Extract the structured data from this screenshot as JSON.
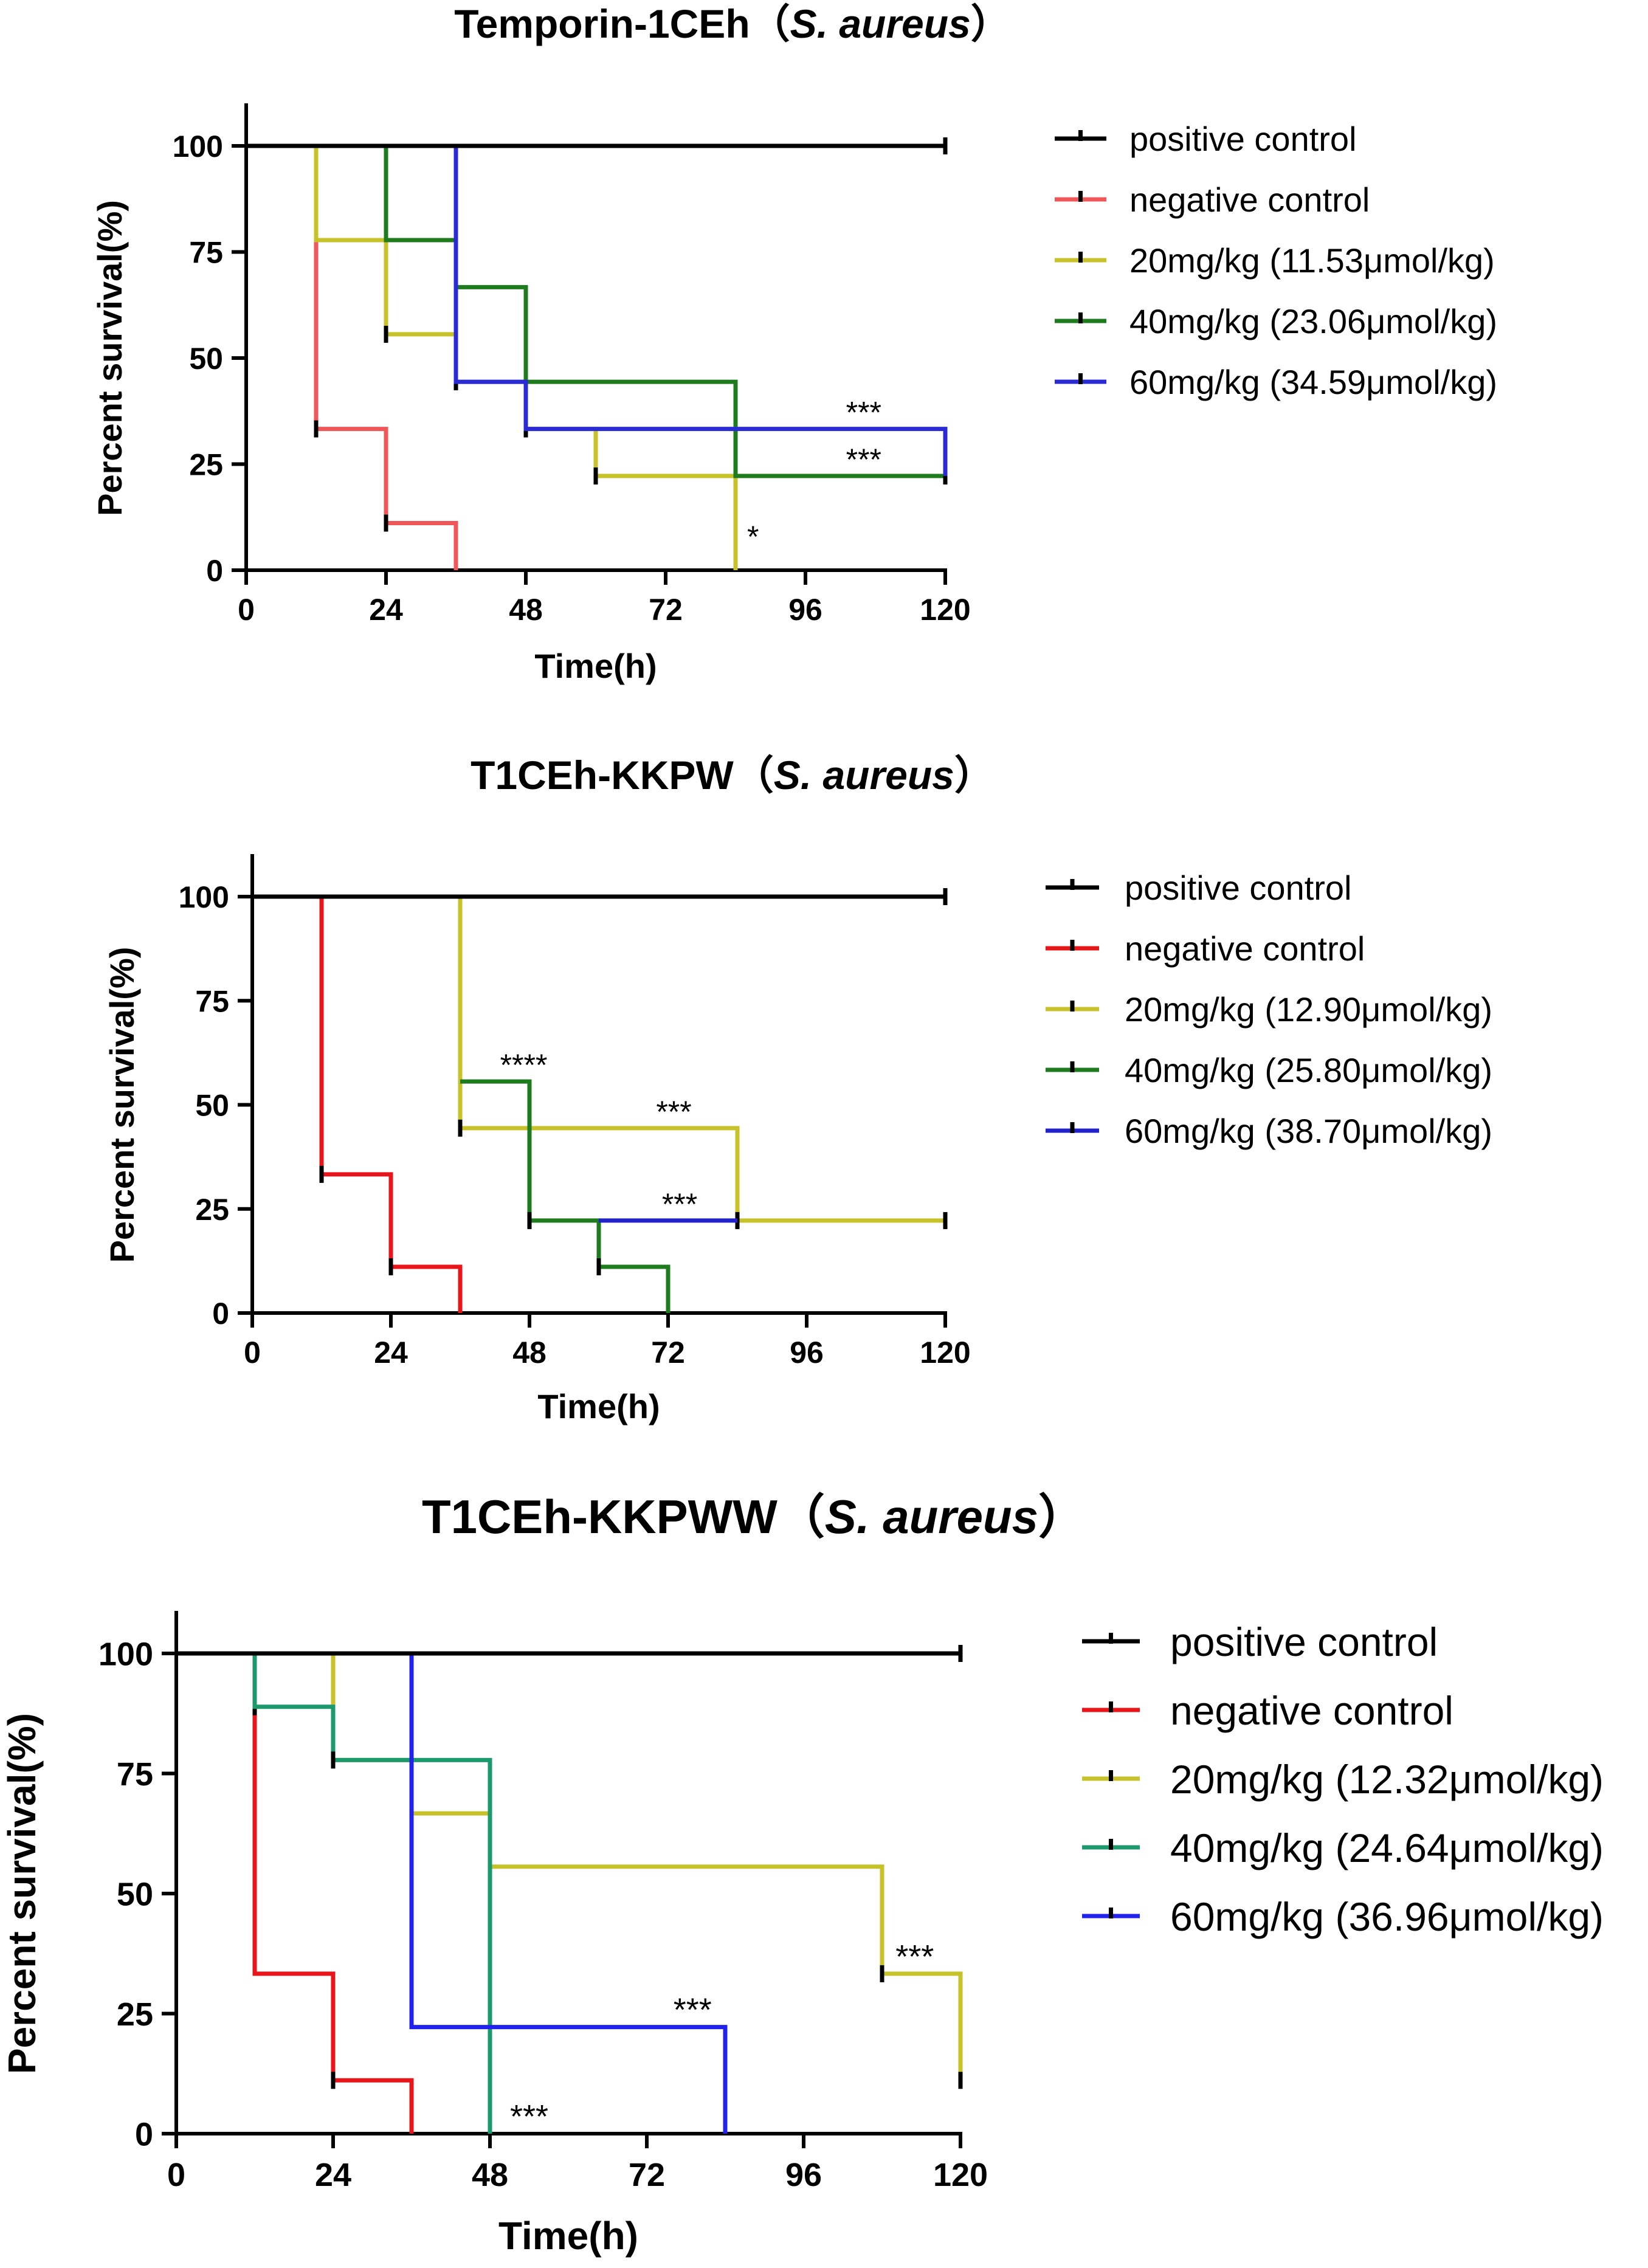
{
  "chart_data": [
    {
      "type": "line",
      "title": "Temporin-1CEh",
      "title_organism": "S. aureus",
      "xlabel": "Time(h)",
      "ylabel": "Percent survival(%)",
      "xlim": [
        0,
        120
      ],
      "ylim": [
        0,
        100
      ],
      "x_ticks": [
        "0",
        "24",
        "48",
        "72",
        "96",
        "120"
      ],
      "y_ticks": [
        "0",
        "25",
        "50",
        "75",
        "100"
      ],
      "grid": false,
      "legend_position": "right",
      "series": [
        {
          "name": "positive control",
          "color": "#000000",
          "points": [
            [
              0,
              100
            ],
            [
              120,
              100
            ]
          ],
          "censor": [
            [
              120,
              100
            ]
          ]
        },
        {
          "name": "negative control",
          "color": "#f0575a",
          "points": [
            [
              12,
              100
            ],
            [
              12,
              33.3
            ],
            [
              24,
              33.3
            ],
            [
              24,
              11.1
            ],
            [
              36,
              11.1
            ],
            [
              36,
              0
            ]
          ],
          "censor": [
            [
              12,
              33.3
            ],
            [
              24,
              11.1
            ]
          ]
        },
        {
          "name": "20mg/kg (11.53μmol/kg)",
          "color": "#c7c22a",
          "points": [
            [
              12,
              100
            ],
            [
              12,
              77.8
            ],
            [
              24,
              77.8
            ],
            [
              24,
              55.6
            ],
            [
              36,
              55.6
            ],
            [
              36,
              44.4
            ],
            [
              48,
              44.4
            ],
            [
              48,
              33.3
            ],
            [
              60,
              33.3
            ],
            [
              60,
              22.2
            ],
            [
              84,
              22.2
            ],
            [
              84,
              0
            ]
          ],
          "censor": [
            [
              24,
              55.6
            ],
            [
              36,
              44.4
            ],
            [
              48,
              33.3
            ],
            [
              60,
              22.2
            ]
          ]
        },
        {
          "name": "40mg/kg (23.06μmol/kg)",
          "color": "#1e7b1e",
          "points": [
            [
              24,
              100
            ],
            [
              24,
              77.8
            ],
            [
              36,
              77.8
            ],
            [
              36,
              66.7
            ],
            [
              48,
              66.7
            ],
            [
              48,
              44.4
            ],
            [
              84,
              44.4
            ],
            [
              84,
              22.2
            ],
            [
              120,
              22.2
            ]
          ],
          "censor": [
            [
              36,
              66.7
            ],
            [
              120,
              22.2
            ]
          ]
        },
        {
          "name": "60mg/kg (34.59μmol/kg)",
          "color": "#2b2bd6",
          "points": [
            [
              36,
              100
            ],
            [
              36,
              44.4
            ],
            [
              48,
              44.4
            ],
            [
              48,
              33.3
            ],
            [
              120,
              33.3
            ],
            [
              120,
              22.2
            ]
          ],
          "censor": []
        }
      ],
      "annotations": [
        {
          "text": "***",
          "x": 106,
          "y": 33.3
        },
        {
          "text": "***",
          "x": 106,
          "y": 22.2
        },
        {
          "text": "*",
          "x": 87,
          "y": 4
        }
      ]
    },
    {
      "type": "line",
      "title": "T1CEh-KKPW",
      "title_organism": "S. aureus",
      "xlabel": "Time(h)",
      "ylabel": "Percent survival(%)",
      "xlim": [
        0,
        120
      ],
      "ylim": [
        0,
        100
      ],
      "x_ticks": [
        "0",
        "24",
        "48",
        "72",
        "96",
        "120"
      ],
      "y_ticks": [
        "0",
        "25",
        "50",
        "75",
        "100"
      ],
      "grid": false,
      "legend_position": "right",
      "series": [
        {
          "name": "positive control",
          "color": "#000000",
          "points": [
            [
              0,
              100
            ],
            [
              120,
              100
            ]
          ],
          "censor": [
            [
              120,
              100
            ]
          ]
        },
        {
          "name": "negative control",
          "color": "#e8151a",
          "points": [
            [
              12,
              100
            ],
            [
              12,
              33.3
            ],
            [
              24,
              33.3
            ],
            [
              24,
              11.1
            ],
            [
              36,
              11.1
            ],
            [
              36,
              0
            ]
          ],
          "censor": [
            [
              12,
              33.3
            ],
            [
              24,
              11.1
            ]
          ]
        },
        {
          "name": "20mg/kg (12.90μmol/kg)",
          "color": "#c7c22a",
          "points": [
            [
              36,
              100
            ],
            [
              36,
              44.4
            ],
            [
              84,
              44.4
            ],
            [
              84,
              22.2
            ],
            [
              120,
              22.2
            ]
          ],
          "censor": [
            [
              36,
              44.4
            ],
            [
              84,
              22.2
            ],
            [
              120,
              22.2
            ]
          ]
        },
        {
          "name": "40mg/kg (25.80μmol/kg)",
          "color": "#1e7b1e",
          "points": [
            [
              36,
              55.6
            ],
            [
              48,
              55.6
            ],
            [
              48,
              22.2
            ],
            [
              60,
              22.2
            ],
            [
              60,
              11.1
            ],
            [
              72,
              11.1
            ],
            [
              72,
              0
            ]
          ],
          "censor": [
            [
              48,
              22.2
            ],
            [
              60,
              11.1
            ]
          ]
        },
        {
          "name": "60mg/kg (38.70μmol/kg)",
          "color": "#2222cc",
          "points": [
            [
              60,
              22.2
            ],
            [
              84,
              22.2
            ]
          ],
          "censor": []
        }
      ],
      "annotations": [
        {
          "text": "****",
          "x": 47,
          "y": 55.6
        },
        {
          "text": "***",
          "x": 73,
          "y": 44.4
        },
        {
          "text": "***",
          "x": 74,
          "y": 22.2
        }
      ]
    },
    {
      "type": "line",
      "title": "T1CEh-KKPWW",
      "title_organism": "S. aureus",
      "xlabel": "Time(h)",
      "ylabel": "Percent survival(%)",
      "xlim": [
        0,
        120
      ],
      "ylim": [
        0,
        100
      ],
      "x_ticks": [
        "0",
        "24",
        "48",
        "72",
        "96",
        "120"
      ],
      "y_ticks": [
        "0",
        "25",
        "50",
        "75",
        "100"
      ],
      "grid": false,
      "legend_position": "right",
      "series": [
        {
          "name": "positive control",
          "color": "#000000",
          "points": [
            [
              0,
              100
            ],
            [
              120,
              100
            ]
          ],
          "censor": [
            [
              120,
              100
            ]
          ]
        },
        {
          "name": "negative control",
          "color": "#e8151a",
          "points": [
            [
              12,
              100
            ],
            [
              12,
              33.3
            ],
            [
              24,
              33.3
            ],
            [
              24,
              11.1
            ],
            [
              36,
              11.1
            ],
            [
              36,
              0
            ]
          ],
          "censor": [
            [
              12,
              88.9
            ],
            [
              24,
              11.1
            ]
          ]
        },
        {
          "name": "20mg/kg (12.32μmol/kg)",
          "color": "#c7c22a",
          "points": [
            [
              24,
              100
            ],
            [
              24,
              77.8
            ],
            [
              36,
              77.8
            ],
            [
              36,
              66.7
            ],
            [
              48,
              66.7
            ],
            [
              48,
              55.6
            ],
            [
              108,
              55.6
            ],
            [
              108,
              33.3
            ],
            [
              120,
              33.3
            ],
            [
              120,
              11.1
            ]
          ],
          "censor": [
            [
              108,
              33.3
            ],
            [
              120,
              11.1
            ]
          ]
        },
        {
          "name": "40mg/kg (24.64μmol/kg)",
          "color": "#1d9a6c",
          "points": [
            [
              12,
              100
            ],
            [
              12,
              88.9
            ],
            [
              24,
              88.9
            ],
            [
              24,
              77.8
            ],
            [
              48,
              77.8
            ],
            [
              48,
              0
            ]
          ],
          "censor": [
            [
              24,
              77.8
            ]
          ]
        },
        {
          "name": "60mg/kg (36.96μmol/kg)",
          "color": "#2222ee",
          "points": [
            [
              0,
              100
            ],
            [
              36,
              100
            ],
            [
              36,
              22.2
            ],
            [
              84,
              22.2
            ],
            [
              84,
              0
            ]
          ],
          "censor": []
        }
      ],
      "annotations": [
        {
          "text": "***",
          "x": 113,
          "y": 33.3
        },
        {
          "text": "***",
          "x": 79,
          "y": 22.2
        },
        {
          "text": "***",
          "x": 54,
          "y": 0
        }
      ]
    }
  ]
}
